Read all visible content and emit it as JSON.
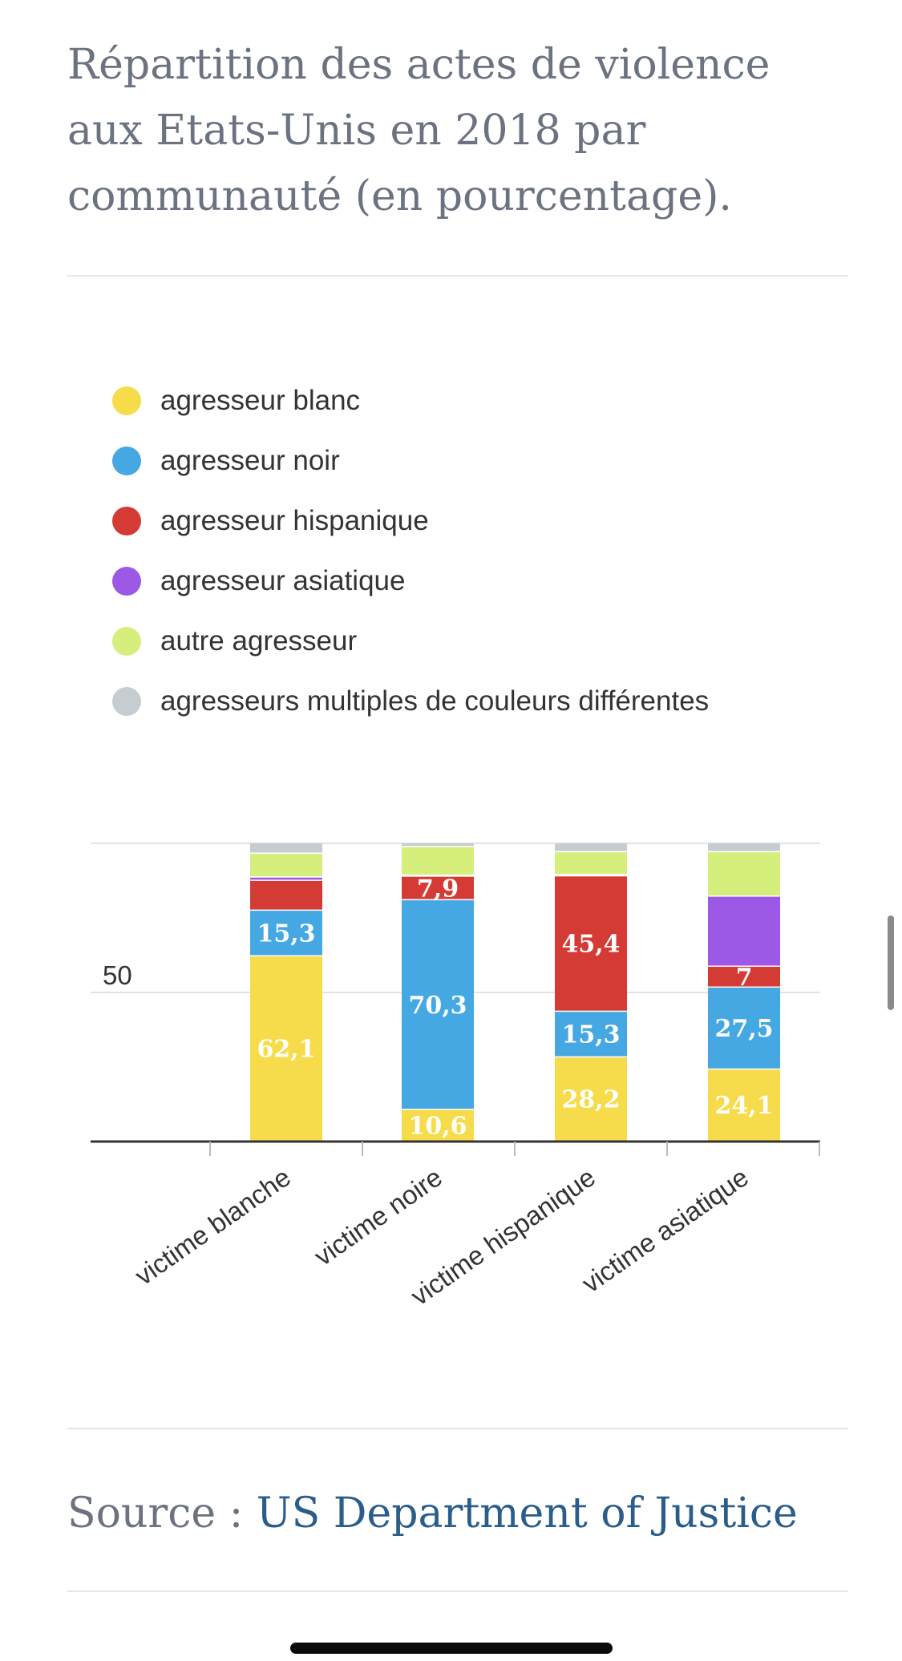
{
  "title": "Répartition des actes de violence aux Etats-Unis en 2018 par communauté (en pourcentage).",
  "legend": [
    {
      "label": "agresseur blanc",
      "color": "#f6dc4a"
    },
    {
      "label": "agresseur noir",
      "color": "#45a8e2"
    },
    {
      "label": "agresseur hispanique",
      "color": "#d53b35"
    },
    {
      "label": "agresseur asiatique",
      "color": "#9b59e6"
    },
    {
      "label": "autre agresseur",
      "color": "#d6ef7c"
    },
    {
      "label": "agresseurs multiples de couleurs différentes",
      "color": "#c5cdd1"
    }
  ],
  "source": {
    "prefix": "Source : ",
    "link_text": "US Department of Justice"
  },
  "chart_data": {
    "type": "bar",
    "stacked": true,
    "categories": [
      "victime blanche",
      "victime noire",
      "victime hispanique",
      "victime asiatique"
    ],
    "ylim": [
      0,
      100
    ],
    "yticks": [
      50
    ],
    "grid": true,
    "legend_position": "top",
    "series": [
      {
        "name": "agresseur blanc",
        "color": "#f6dc4a",
        "values": [
          62.1,
          10.6,
          28.2,
          24.1
        ],
        "labels": [
          "62,1",
          "10,6",
          "28,2",
          "24,1"
        ]
      },
      {
        "name": "agresseur noir",
        "color": "#45a8e2",
        "values": [
          15.3,
          70.3,
          15.3,
          27.5
        ],
        "labels": [
          "15,3",
          "70,3",
          "15,3",
          "27,5"
        ]
      },
      {
        "name": "agresseur hispanique",
        "color": "#d53b35",
        "values": [
          10.0,
          7.9,
          45.4,
          7.0
        ],
        "labels": [
          "",
          "7,9",
          "45,4",
          "7"
        ]
      },
      {
        "name": "agresseur asiatique",
        "color": "#9b59e6",
        "values": [
          1.1,
          0.3,
          0.4,
          23.5
        ],
        "labels": [
          "",
          "",
          "",
          ""
        ]
      },
      {
        "name": "autre agresseur",
        "color": "#d6ef7c",
        "values": [
          8.0,
          9.6,
          7.7,
          14.9
        ],
        "labels": [
          "",
          "",
          "",
          ""
        ]
      },
      {
        "name": "agresseurs multiples de couleurs différentes",
        "color": "#c5cdd1",
        "values": [
          3.5,
          1.3,
          3.0,
          3.0
        ],
        "labels": [
          "",
          "",
          "",
          ""
        ]
      }
    ]
  }
}
